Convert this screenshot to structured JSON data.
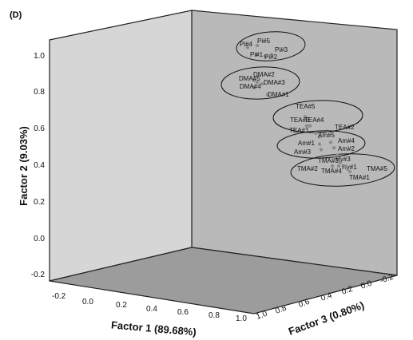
{
  "chart_data": {
    "type": "scatter",
    "panel_label": "(D)",
    "xlabel": "Factor 1 (89.68%)",
    "ylabel": "Factor 2 (9.03%)",
    "zlabel": "Factor 3 (0.80%)",
    "x_ticks": [
      "-0.2",
      "0.0",
      "0.2",
      "0.4",
      "0.6",
      "0.8",
      "1.0"
    ],
    "y_ticks": [
      "-0.2",
      "0.0",
      "0.2",
      "0.4",
      "0.6",
      "0.8",
      "1.0"
    ],
    "z_ticks": [
      "1.0",
      "0.8",
      "0.6",
      "0.4",
      "0.2",
      "0.0",
      "-0.2"
    ],
    "xlim": [
      -0.2,
      1.0
    ],
    "ylim": [
      -0.2,
      1.0
    ],
    "zlim": [
      -0.2,
      1.0
    ],
    "grid": false,
    "background": "#b9b9b9",
    "marker_color": "#8c8c8c",
    "groups": [
      {
        "points": [
          {
            "label": "Pi#4",
            "y": 1.06
          },
          {
            "label": "Pi#5",
            "y": 1.07
          },
          {
            "label": "Pi#3",
            "y": 1.02
          },
          {
            "label": "Pi#1",
            "y": 1.02
          },
          {
            "label": "Pi#2",
            "y": 1.01
          }
        ]
      },
      {
        "points": [
          {
            "label": "DMA#5",
            "y": 0.88
          },
          {
            "label": "DMA#2",
            "y": 0.87
          },
          {
            "label": "DMA#3",
            "y": 0.86
          },
          {
            "label": "DMA#4",
            "y": 0.84
          },
          {
            "label": "DMA#1",
            "y": 0.8
          }
        ]
      },
      {
        "points": [
          {
            "label": "TEA#5",
            "y": 0.68
          },
          {
            "label": "TEA#3",
            "y": 0.63
          },
          {
            "label": "TEA#4",
            "y": 0.63
          },
          {
            "label": "TEA#2",
            "y": 0.6
          },
          {
            "label": "TEA#1",
            "y": 0.59
          }
        ]
      },
      {
        "points": [
          {
            "label": "Am#5",
            "y": 0.57
          },
          {
            "label": "Am#4",
            "y": 0.54
          },
          {
            "label": "Am#1",
            "y": 0.53
          },
          {
            "label": "Am#2",
            "y": 0.51
          },
          {
            "label": "Am#3",
            "y": 0.5
          }
        ]
      },
      {
        "points": [
          {
            "label": "TMA#3",
            "y": 0.46
          },
          {
            "label": "Hy#3",
            "y": 0.47
          },
          {
            "label": "TMA#2",
            "y": 0.41
          },
          {
            "label": "TMA#4",
            "y": 0.41
          },
          {
            "label": "Hy#1",
            "y": 0.43
          },
          {
            "label": "TMA#5",
            "y": 0.41
          },
          {
            "label": "TMA#1",
            "y": 0.38
          }
        ]
      }
    ]
  }
}
